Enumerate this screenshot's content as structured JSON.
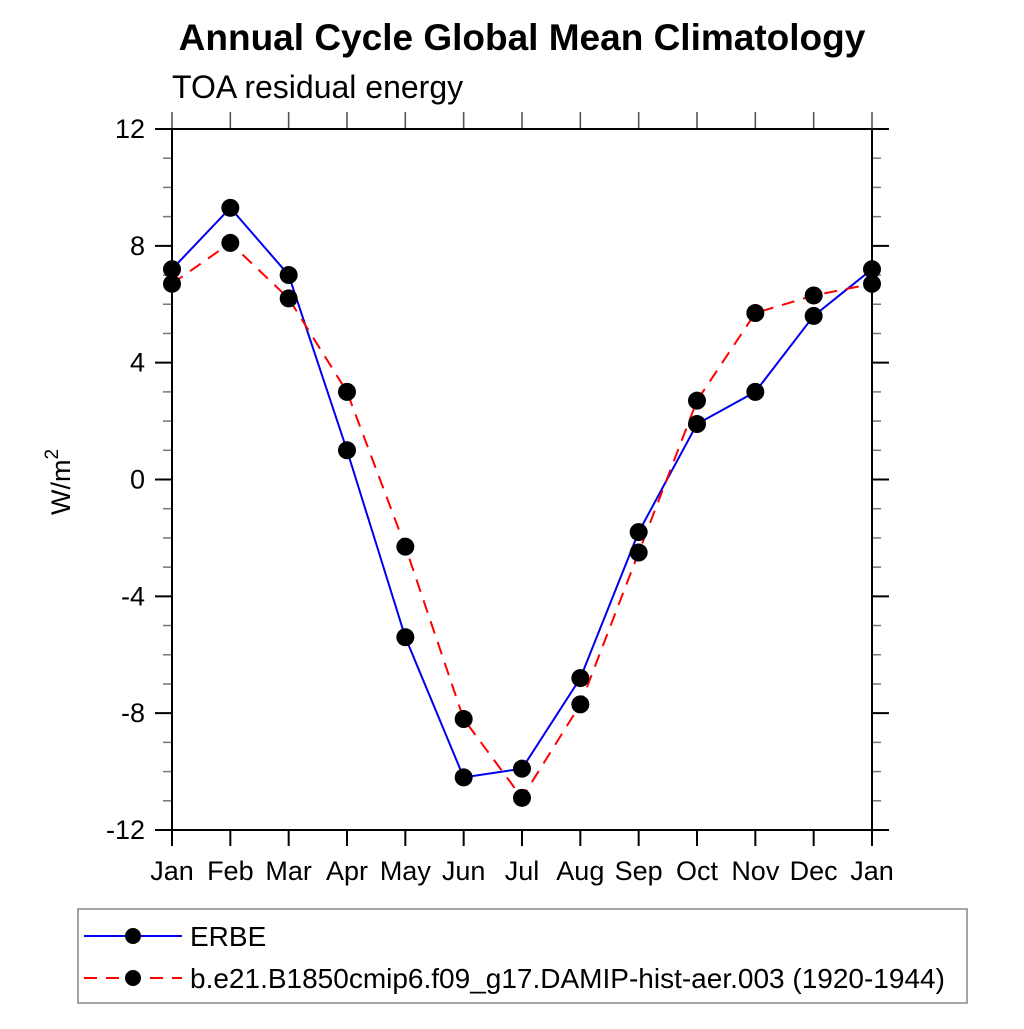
{
  "title": "Annual Cycle Global Mean Climatology",
  "subtitle": "TOA residual energy",
  "y_axis": {
    "label_base": "W/m",
    "label_exponent": "2"
  },
  "chart_data": {
    "type": "line",
    "title": "Annual Cycle Global Mean Climatology",
    "subtitle": "TOA residual energy",
    "ylabel": "W/m2",
    "categories": [
      "Jan",
      "Feb",
      "Mar",
      "Apr",
      "May",
      "Jun",
      "Jul",
      "Aug",
      "Sep",
      "Oct",
      "Nov",
      "Dec",
      "Jan"
    ],
    "series": [
      {
        "name": "ERBE",
        "color": "#0000ee",
        "line_style": "solid",
        "marker": "filled-circle",
        "marker_color": "#000000",
        "values": [
          7.2,
          9.3,
          7.0,
          1.0,
          -5.4,
          -10.2,
          -9.9,
          -6.8,
          -1.8,
          1.9,
          3.0,
          5.6,
          7.2
        ]
      },
      {
        "name": "b.e21.B1850cmip6.f09_g17.DAMIP-hist-aer.003 (1920-1944)",
        "color": "#ff0000",
        "line_style": "dashed",
        "marker": "filled-circle",
        "marker_color": "#000000",
        "values": [
          6.7,
          8.1,
          6.2,
          3.0,
          -2.3,
          -8.2,
          -10.9,
          -7.7,
          -2.5,
          2.7,
          5.7,
          6.3,
          6.7
        ]
      }
    ],
    "ylim": [
      -12,
      12
    ],
    "ytick_major": [
      -12,
      -8,
      -4,
      0,
      4,
      8,
      12
    ],
    "ytick_minor_step": 1,
    "grid": false,
    "frame": "all-four-sides",
    "tick_direction": "out",
    "legend_position": "bottom-left-box"
  }
}
